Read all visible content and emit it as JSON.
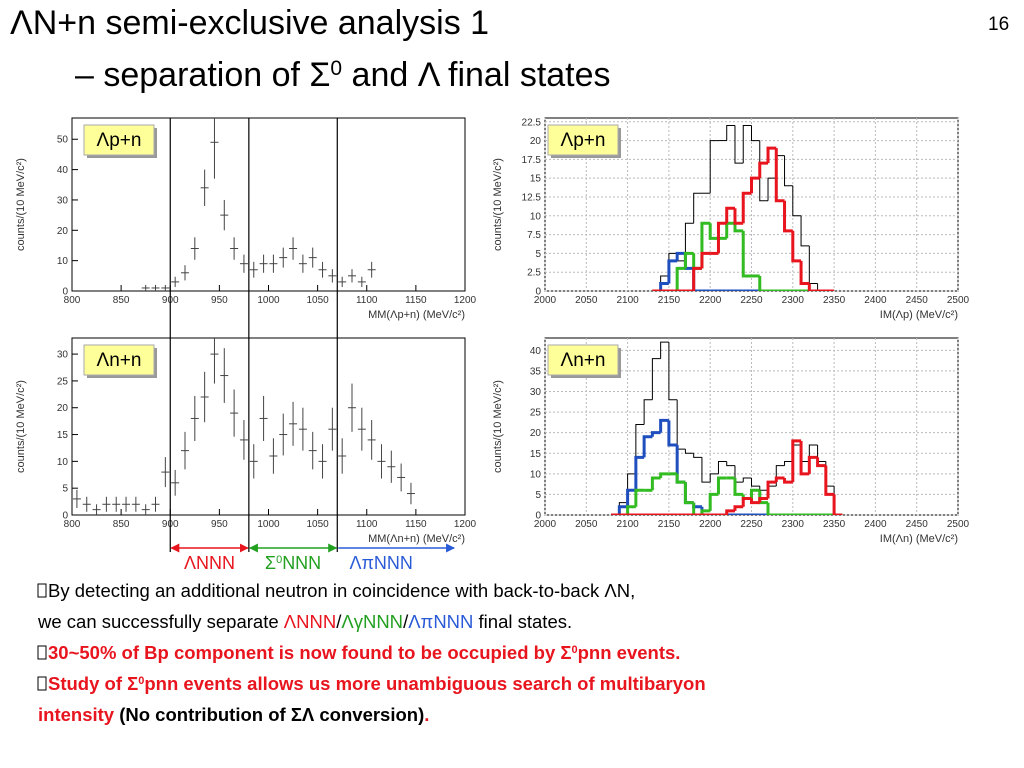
{
  "slide": {
    "title": [
      [
        {
          "text": "ΛN+n semi-exclusive analysis 1"
        }
      ],
      [
        {
          "text": "– separation of Σ"
        },
        {
          "text": "0",
          "sup": true
        },
        {
          "text": " and Λ final states"
        }
      ]
    ],
    "page_number": "16",
    "regions": [
      {
        "parts": [
          {
            "text": "ΛNNN"
          }
        ],
        "color": "#e8141e",
        "from": 900,
        "to": 980
      },
      {
        "parts": [
          {
            "text": "Σ"
          },
          {
            "text": "0",
            "sup": true
          },
          {
            "text": "NNN"
          }
        ],
        "color": "#22a020",
        "from": 980,
        "to": 1070
      },
      {
        "parts": [
          {
            "text": "ΛπNNN"
          }
        ],
        "color": "#2a5bd7",
        "from": 1070,
        "to": 1190
      }
    ],
    "bullets": [
      {
        "lines": [
          [
            {
              "text": "By detecting an additional neutron in coincidence with back-to-back ΛN,"
            }
          ],
          [
            {
              "text": "we can successfully separate "
            },
            {
              "text": "ΛNNN",
              "color": "#e8141e"
            },
            {
              "text": "/"
            },
            {
              "text": "ΛγNNN",
              "color": "#22a020"
            },
            {
              "text": "/"
            },
            {
              "text": "ΛπNNN",
              "color": "#2a5bd7"
            },
            {
              "text": " final states."
            }
          ]
        ]
      },
      {
        "lines": [
          [
            {
              "text": "30~50% of Bp component is now found to be occupied by Σ",
              "color": "#e8141e",
              "bold": true
            },
            {
              "text": "0",
              "color": "#e8141e",
              "bold": true,
              "sup": true
            },
            {
              "text": "pnn events.",
              "color": "#e8141e",
              "bold": true
            }
          ]
        ]
      },
      {
        "lines": [
          [
            {
              "text": "Study of Σ",
              "color": "#e8141e",
              "bold": true
            },
            {
              "text": "0",
              "color": "#e8141e",
              "bold": true,
              "sup": true
            },
            {
              "text": "pnn events allows us more unambiguous search of multibaryon",
              "color": "#e8141e",
              "bold": true
            }
          ],
          [
            {
              "text": "intensity",
              "color": "#e8141e",
              "bold": true
            },
            {
              "text": " (No contribution of ΣΛ conversion)",
              "bold": true
            },
            {
              "text": ".",
              "color": "#e8141e",
              "bold": true
            }
          ]
        ]
      }
    ]
  },
  "chart_data": [
    {
      "type": "scatter",
      "annotation": "Λp+n",
      "xlabel": "MM(Λp+n) (MeV/c²)",
      "ylabel": "counts/(10 MeV/c²)",
      "xlim": [
        800,
        1200
      ],
      "ylim": [
        0,
        57
      ],
      "xticks": [
        800,
        850,
        900,
        950,
        1000,
        1050,
        1100,
        1150,
        1200
      ],
      "yticks": [
        0,
        10,
        20,
        30,
        40,
        50
      ],
      "grid": false,
      "color": "#444444",
      "x": [
        875,
        885,
        895,
        905,
        915,
        925,
        935,
        945,
        955,
        965,
        975,
        985,
        995,
        1005,
        1015,
        1025,
        1035,
        1045,
        1055,
        1065,
        1075,
        1085,
        1095,
        1105
      ],
      "values": [
        1,
        1,
        1,
        3,
        6,
        14,
        34,
        49,
        25,
        14,
        9,
        7,
        9,
        9,
        11,
        14,
        9,
        11,
        7,
        5,
        3,
        5,
        3,
        7
      ],
      "errors": [
        1,
        1,
        1,
        1.7,
        2.5,
        3.7,
        6,
        12,
        5,
        3.7,
        3,
        2.6,
        3,
        3,
        3.3,
        3.7,
        3,
        3.3,
        2.6,
        2.2,
        1.7,
        2.2,
        1.7,
        2.6
      ]
    },
    {
      "type": "histogram",
      "annotation": "Λp+n",
      "xlabel": "IM(Λp) (MeV/c²)",
      "ylabel": "counts/(10 MeV/c²)",
      "xlim": [
        2000,
        2500
      ],
      "ylim": [
        0,
        23
      ],
      "xticks": [
        2000,
        2050,
        2100,
        2150,
        2200,
        2250,
        2300,
        2350,
        2400,
        2450,
        2500
      ],
      "yticks": [
        0,
        2.5,
        5,
        7.5,
        10,
        12.5,
        15,
        17.5,
        20,
        22.5
      ],
      "grid": true,
      "bins": [
        2130,
        2140,
        2150,
        2160,
        2170,
        2180,
        2190,
        2200,
        2210,
        2220,
        2230,
        2240,
        2250,
        2260,
        2270,
        2280,
        2290,
        2300,
        2310,
        2320,
        2330,
        2340,
        2350
      ],
      "series": [
        {
          "color": "#000000",
          "values": [
            0,
            2,
            5,
            4,
            9,
            13,
            13,
            20,
            20,
            22,
            17,
            22,
            20,
            12,
            15,
            18,
            14,
            10,
            6,
            1,
            0,
            0
          ]
        },
        {
          "color": "#1f4fbf",
          "values": [
            0,
            1,
            4,
            5,
            3,
            0,
            0,
            0,
            0,
            0,
            0,
            0,
            0,
            0,
            0,
            0,
            0,
            0,
            0,
            0,
            0,
            0
          ]
        },
        {
          "color": "#33bb22",
          "values": [
            0,
            0,
            0,
            3,
            5,
            3,
            9,
            7,
            7,
            9,
            8,
            2,
            2,
            0,
            0,
            0,
            0,
            0,
            0,
            0,
            0,
            0
          ]
        },
        {
          "color": "#e8141e",
          "values": [
            0,
            0,
            0,
            0,
            0,
            3,
            5,
            5,
            9,
            11,
            9,
            13,
            15,
            17,
            19,
            12,
            8,
            4,
            1,
            0,
            0,
            0
          ]
        }
      ]
    },
    {
      "type": "scatter",
      "annotation": "Λn+n",
      "xlabel": "MM(Λn+n) (MeV/c²)",
      "ylabel": "counts/(10 MeV/c²)",
      "xlim": [
        800,
        1200
      ],
      "ylim": [
        0,
        33
      ],
      "xticks": [
        800,
        850,
        900,
        950,
        1000,
        1050,
        1100,
        1150,
        1200
      ],
      "yticks": [
        0,
        5,
        10,
        15,
        20,
        25,
        30
      ],
      "grid": false,
      "color": "#444444",
      "x": [
        805,
        815,
        825,
        835,
        845,
        855,
        865,
        875,
        885,
        895,
        905,
        915,
        925,
        935,
        945,
        955,
        965,
        975,
        985,
        995,
        1005,
        1015,
        1025,
        1035,
        1045,
        1055,
        1065,
        1075,
        1085,
        1095,
        1105,
        1115,
        1125,
        1135,
        1145
      ],
      "values": [
        3,
        2,
        1,
        2,
        2,
        2,
        2,
        1,
        2,
        8,
        6,
        12,
        18,
        22,
        30,
        26,
        19,
        14,
        10,
        18,
        11,
        15,
        17,
        16,
        12,
        10,
        16,
        11,
        20,
        16,
        14,
        10,
        9,
        7,
        4
      ],
      "errors": [
        1.7,
        1.4,
        1,
        1.4,
        1.4,
        1.4,
        1.4,
        1,
        1.4,
        2.8,
        2.4,
        3.5,
        4.2,
        4.7,
        5.5,
        5.1,
        4.4,
        3.7,
        3.2,
        4.2,
        3.3,
        3.9,
        4.1,
        4,
        3.5,
        3.2,
        4,
        3.3,
        4.5,
        4,
        3.7,
        3.2,
        3,
        2.6,
        2
      ]
    },
    {
      "type": "histogram",
      "annotation": "Λn+n",
      "xlabel": "IM(Λn) (MeV/c²)",
      "ylabel": "counts/(10 MeV/c²)",
      "xlim": [
        2000,
        2500
      ],
      "ylim": [
        0,
        43
      ],
      "xticks": [
        2000,
        2050,
        2100,
        2150,
        2200,
        2250,
        2300,
        2350,
        2400,
        2450,
        2500
      ],
      "yticks": [
        0,
        5,
        10,
        15,
        20,
        25,
        30,
        35,
        40
      ],
      "grid": true,
      "bins": [
        2080,
        2090,
        2100,
        2110,
        2120,
        2130,
        2140,
        2150,
        2160,
        2170,
        2180,
        2190,
        2200,
        2210,
        2220,
        2230,
        2240,
        2250,
        2260,
        2270,
        2280,
        2290,
        2300,
        2310,
        2320,
        2330,
        2340,
        2350,
        2360
      ],
      "series": [
        {
          "color": "#000000",
          "values": [
            0,
            3,
            10,
            22,
            28,
            38,
            42,
            28,
            16,
            15,
            14,
            8,
            10,
            13,
            12,
            8,
            9,
            7,
            6,
            7,
            12,
            13,
            17,
            13,
            17,
            13,
            7,
            0
          ]
        },
        {
          "color": "#1f4fbf",
          "values": [
            0,
            2,
            6,
            14,
            19,
            20,
            23,
            17,
            8,
            3,
            2,
            0,
            0,
            0,
            0,
            0,
            0,
            0,
            0,
            0,
            0,
            0,
            0,
            0,
            0,
            0,
            0,
            0
          ]
        },
        {
          "color": "#33bb22",
          "values": [
            0,
            0,
            2,
            6,
            6,
            9,
            10,
            10,
            8,
            3,
            0,
            1,
            5,
            9,
            9,
            5,
            4,
            6,
            3,
            0,
            0,
            0,
            0,
            0,
            0,
            0,
            0,
            0
          ]
        },
        {
          "color": "#e8141e",
          "values": [
            0,
            0,
            0,
            0,
            0,
            0,
            0,
            0,
            0,
            0,
            0,
            0,
            0,
            0,
            1,
            2,
            4,
            3,
            4,
            8,
            9,
            8,
            18,
            10,
            14,
            12,
            5,
            0
          ]
        }
      ]
    }
  ]
}
